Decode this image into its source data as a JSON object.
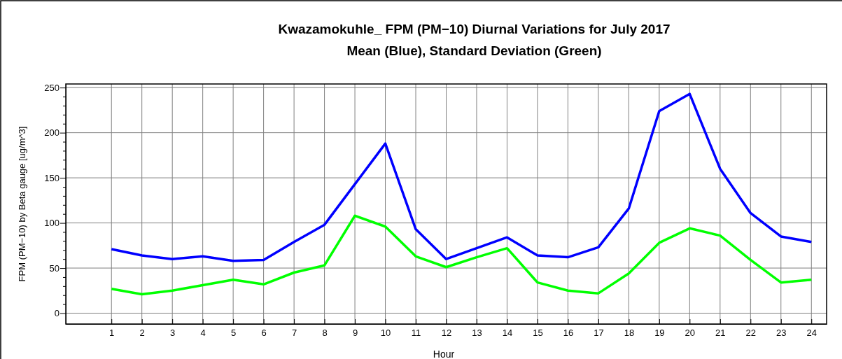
{
  "chart_data": {
    "type": "line",
    "title": "Kwazamokuhle_ FPM (PM−10) Diurnal Variations for July 2017",
    "subtitle": "Mean (Blue), Standard Deviation (Green)",
    "xlabel": "Hour",
    "ylabel": "FPM (PM−10) by Beta gauge  [ug/m^3]",
    "x": [
      1,
      2,
      3,
      4,
      5,
      6,
      7,
      8,
      9,
      10,
      11,
      12,
      13,
      14,
      15,
      16,
      17,
      18,
      19,
      20,
      21,
      22,
      23,
      24
    ],
    "series": [
      {
        "color": "#0000ff",
        "values": [
          71,
          64,
          60,
          63,
          58,
          59,
          79,
          98,
          143,
          188,
          93,
          60,
          72,
          84,
          64,
          62,
          73,
          116,
          224,
          243,
          160,
          111,
          85,
          79
        ]
      },
      {
        "color": "#00ff00",
        "values": [
          27,
          21,
          25,
          31,
          37,
          32,
          45,
          53,
          108,
          96,
          63,
          51,
          62,
          72,
          34,
          25,
          22,
          44,
          78,
          94,
          86,
          59,
          34,
          37
        ]
      }
    ],
    "xlim": [
      -0.5,
      24.5
    ],
    "ylim": [
      -12,
      254
    ],
    "xticks": [
      1,
      2,
      3,
      4,
      5,
      6,
      7,
      8,
      9,
      10,
      11,
      12,
      13,
      14,
      15,
      16,
      17,
      18,
      19,
      20,
      21,
      22,
      23,
      24
    ],
    "yticks": [
      0,
      {
        "value": 10,
        "label": null
      },
      {
        "value": 20,
        "label": null
      },
      {
        "value": 30,
        "label": null
      },
      {
        "value": 40,
        "label": null
      },
      50,
      {
        "value": 60,
        "label": null
      },
      {
        "value": 70,
        "label": null
      },
      {
        "value": 80,
        "label": null
      },
      {
        "value": 90,
        "label": null
      },
      100,
      {
        "value": 110,
        "label": null
      },
      {
        "value": 120,
        "label": null
      },
      {
        "value": 130,
        "label": null
      },
      {
        "value": 140,
        "label": null
      },
      150,
      {
        "value": 160,
        "label": null
      },
      {
        "value": 170,
        "label": null
      },
      {
        "value": 180,
        "label": null
      },
      {
        "value": 190,
        "label": null
      },
      200,
      {
        "value": 210,
        "label": null
      },
      {
        "value": 220,
        "label": null
      },
      {
        "value": 230,
        "label": null
      },
      {
        "value": 240,
        "label": null
      },
      250
    ],
    "grid": true,
    "marker": "none",
    "line_style": "solid"
  }
}
